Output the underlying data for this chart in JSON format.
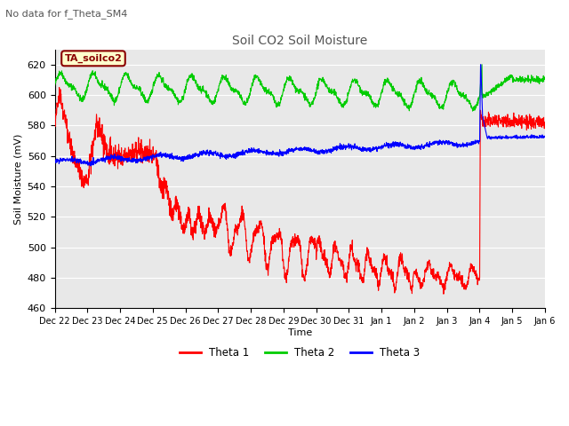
{
  "title": "Soil CO2 Soil Moisture",
  "subtitle": "No data for f_Theta_SM4",
  "ylabel": "Soil Moisture (mV)",
  "xlabel": "Time",
  "ylim": [
    460,
    630
  ],
  "bg_color": "#e8e8e8",
  "legend_box_color": "#ffffcc",
  "legend_box_border": "#8b0000",
  "annotation_text": "TA_soilco2",
  "theta1_color": "#ff0000",
  "theta2_color": "#00cc00",
  "theta3_color": "#0000ff",
  "xtick_labels": [
    "Dec 22",
    "Dec 23",
    "Dec 24",
    "Dec 25",
    "Dec 26",
    "Dec 27",
    "Dec 28",
    "Dec 29",
    "Dec 30",
    "Dec 31",
    "Jan 1",
    "Jan 2",
    "Jan 3",
    "Jan 4",
    "Jan 5",
    "Jan 6"
  ],
  "yticks": [
    460,
    480,
    500,
    520,
    540,
    560,
    580,
    600,
    620
  ]
}
